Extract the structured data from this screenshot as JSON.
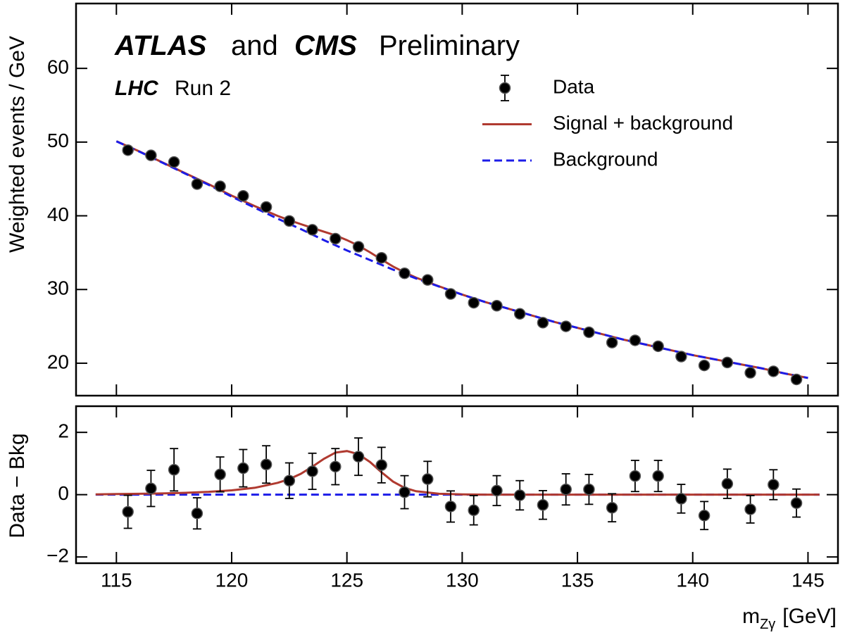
{
  "chart_data": [
    {
      "type": "line",
      "title_parts": [
        "ATLAS",
        "and",
        "CMS",
        "Preliminary"
      ],
      "lhc_label": "LHC",
      "run_label": "Run 2",
      "ylabel": "Weighted events / GeV",
      "xlim": [
        113.25,
        146.3
      ],
      "xticks": [
        115,
        120,
        125,
        130,
        135,
        140,
        145
      ],
      "xtick_labels": false,
      "ylim": [
        15.6,
        68.8
      ],
      "yticks": [
        20,
        30,
        40,
        50,
        60
      ],
      "legend": "upper right",
      "series": [
        {
          "name": "Data",
          "style": "points",
          "color": "#000000",
          "x": [
            115.5,
            116.5,
            117.5,
            118.5,
            119.5,
            120.5,
            121.5,
            122.5,
            123.5,
            124.5,
            125.5,
            126.5,
            127.5,
            128.5,
            129.5,
            130.5,
            131.5,
            132.5,
            133.5,
            134.5,
            135.5,
            136.5,
            137.5,
            138.5,
            139.5,
            140.5,
            141.5,
            142.5,
            143.5,
            144.5
          ],
          "values": [
            48.9,
            48.2,
            47.3,
            44.3,
            44.0,
            42.7,
            41.2,
            39.3,
            38.1,
            36.9,
            35.8,
            34.3,
            32.2,
            31.3,
            29.4,
            28.2,
            27.8,
            26.7,
            25.5,
            25.0,
            24.2,
            22.8,
            23.1,
            22.3,
            20.9,
            19.7,
            20.1,
            18.7,
            18.9,
            17.8
          ]
        },
        {
          "name": "Signal + background",
          "style": "solid",
          "color": "#b03a30",
          "x": [
            115,
            116,
            117,
            118,
            119,
            120,
            121,
            122,
            122.5,
            123,
            123.5,
            124,
            124.5,
            125,
            125.5,
            126,
            126.5,
            127,
            127.5,
            128,
            129,
            130,
            131,
            132,
            133,
            134,
            135,
            136,
            137,
            138,
            139,
            140,
            141,
            142,
            143,
            144,
            145
          ],
          "values": [
            50.12,
            48.73,
            47.24,
            45.76,
            44.29,
            42.74,
            41.32,
            39.98,
            39.4,
            38.87,
            38.35,
            37.85,
            37.35,
            36.7,
            35.95,
            35.05,
            34.07,
            33.12,
            32.32,
            31.61,
            30.43,
            29.31,
            28.3,
            27.4,
            26.5,
            25.6,
            24.8,
            24.0,
            23.2,
            22.5,
            21.8,
            21.1,
            20.5,
            19.9,
            19.3,
            18.6,
            18.0
          ]
        },
        {
          "name": "Background",
          "style": "dashed",
          "color": "#1c1ce8",
          "x": [
            115,
            116,
            117,
            118,
            119,
            120,
            121,
            122,
            122.5,
            123,
            123.5,
            124,
            124.5,
            125,
            125.5,
            126,
            126.5,
            127,
            127.5,
            128,
            129,
            130,
            131,
            132,
            133,
            134,
            135,
            136,
            137,
            138,
            139,
            140,
            141,
            142,
            143,
            144,
            145
          ],
          "values": [
            50.1,
            48.7,
            47.2,
            45.7,
            44.2,
            42.6,
            41.1,
            39.6,
            38.9,
            38.2,
            37.45,
            36.7,
            36.0,
            35.3,
            34.65,
            34.0,
            33.35,
            32.7,
            32.1,
            31.5,
            30.4,
            29.3,
            28.3,
            27.4,
            26.5,
            25.6,
            24.8,
            24.0,
            23.2,
            22.5,
            21.8,
            21.1,
            20.5,
            19.9,
            19.3,
            18.6,
            18.0
          ]
        }
      ]
    },
    {
      "type": "line",
      "ylabel": "Data − Bkg",
      "xlabel": "m",
      "xlabel_subscript": "Zγ",
      "xlabel_unit": "[GeV]",
      "xlim": [
        113.25,
        146.3
      ],
      "xticks": [
        115,
        120,
        125,
        130,
        135,
        140,
        145
      ],
      "ylim": [
        -2.2,
        2.84
      ],
      "yticks": [
        2,
        0,
        {
          "value": -2,
          "label": "−2"
        }
      ],
      "series": [
        {
          "style": "dashed",
          "color": "#1c1ce8",
          "x": [
            114.1,
            145.5
          ],
          "values": [
            0,
            0
          ]
        },
        {
          "style": "solid",
          "color": "#b03a30",
          "x": [
            114.1,
            115,
            116,
            117,
            118,
            119,
            120,
            121,
            122,
            122.5,
            123,
            123.5,
            124,
            124.5,
            125,
            125.5,
            126,
            126.5,
            127,
            127.5,
            128,
            129,
            130,
            131,
            132,
            133,
            134,
            135,
            136,
            137,
            138,
            139,
            140,
            141,
            142,
            143,
            144,
            145,
            145.5
          ],
          "values": [
            0.01,
            0.02,
            0.03,
            0.04,
            0.06,
            0.09,
            0.14,
            0.22,
            0.38,
            0.5,
            0.67,
            0.9,
            1.15,
            1.35,
            1.4,
            1.3,
            1.05,
            0.72,
            0.42,
            0.22,
            0.11,
            0.03,
            0.01,
            0,
            0,
            0,
            0,
            0,
            0,
            0,
            0,
            0,
            0,
            0,
            0,
            0,
            0,
            0,
            0
          ]
        },
        {
          "style": "points",
          "color": "#000000",
          "x": [
            115.5,
            116.5,
            117.5,
            118.5,
            119.5,
            120.5,
            121.5,
            122.5,
            123.5,
            124.5,
            125.5,
            126.5,
            127.5,
            128.5,
            129.5,
            130.5,
            131.5,
            132.5,
            133.5,
            134.5,
            135.5,
            136.5,
            137.5,
            138.5,
            139.5,
            140.5,
            141.5,
            142.5,
            143.5,
            144.5
          ],
          "values": [
            -0.55,
            0.2,
            0.8,
            -0.6,
            0.65,
            0.85,
            0.97,
            0.45,
            0.75,
            0.9,
            1.22,
            0.95,
            0.08,
            0.5,
            -0.38,
            -0.5,
            0.13,
            -0.02,
            -0.33,
            0.17,
            0.17,
            -0.42,
            0.6,
            0.6,
            -0.13,
            -0.67,
            0.35,
            -0.47,
            0.32,
            -0.27
          ],
          "errors": [
            0.53,
            0.58,
            0.68,
            0.5,
            0.56,
            0.6,
            0.6,
            0.57,
            0.58,
            0.58,
            0.6,
            0.57,
            0.53,
            0.57,
            0.5,
            0.47,
            0.48,
            0.47,
            0.46,
            0.5,
            0.48,
            0.45,
            0.5,
            0.5,
            0.46,
            0.45,
            0.47,
            0.44,
            0.48,
            0.45
          ]
        }
      ]
    }
  ]
}
